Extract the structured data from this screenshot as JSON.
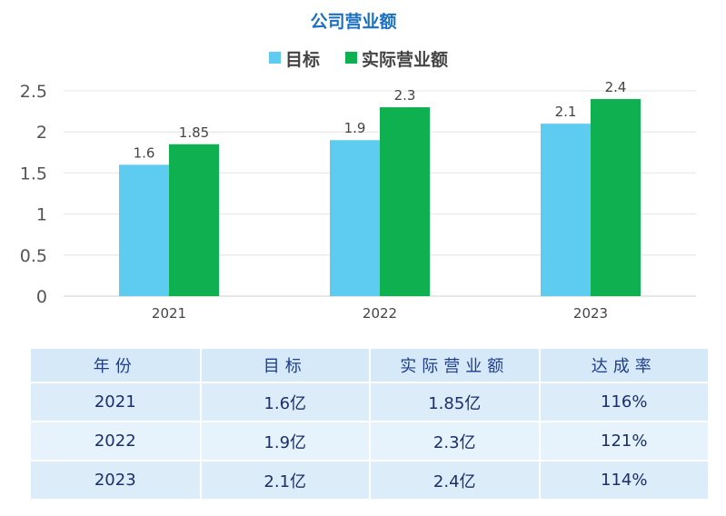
{
  "chart_data": {
    "type": "bar",
    "title": "公司营业额",
    "categories": [
      "2021",
      "2022",
      "2023"
    ],
    "series": [
      {
        "name": "目标",
        "values": [
          1.6,
          1.9,
          2.1
        ],
        "color": "#5ecbf0"
      },
      {
        "name": "实际营业额",
        "values": [
          1.85,
          2.3,
          2.4
        ],
        "color": "#0fb04f"
      }
    ],
    "ylim": [
      0,
      2.5
    ],
    "yticks": [
      "0",
      "0.5",
      "1",
      "1.5",
      "2",
      "2.5"
    ],
    "data_labels": [
      [
        "1.6",
        "1.9",
        "2.1"
      ],
      [
        "1.85",
        "2.3",
        "2.4"
      ]
    ],
    "grid": true,
    "legend": "top"
  },
  "table": {
    "headers": [
      "年份",
      "目标",
      "实际营业额",
      "达成率"
    ],
    "rows": [
      [
        "2021",
        "1.6亿",
        "1.85亿",
        "116%"
      ],
      [
        "2022",
        "1.9亿",
        "2.3亿",
        "121%"
      ],
      [
        "2023",
        "2.1亿",
        "2.4亿",
        "114%"
      ]
    ]
  }
}
